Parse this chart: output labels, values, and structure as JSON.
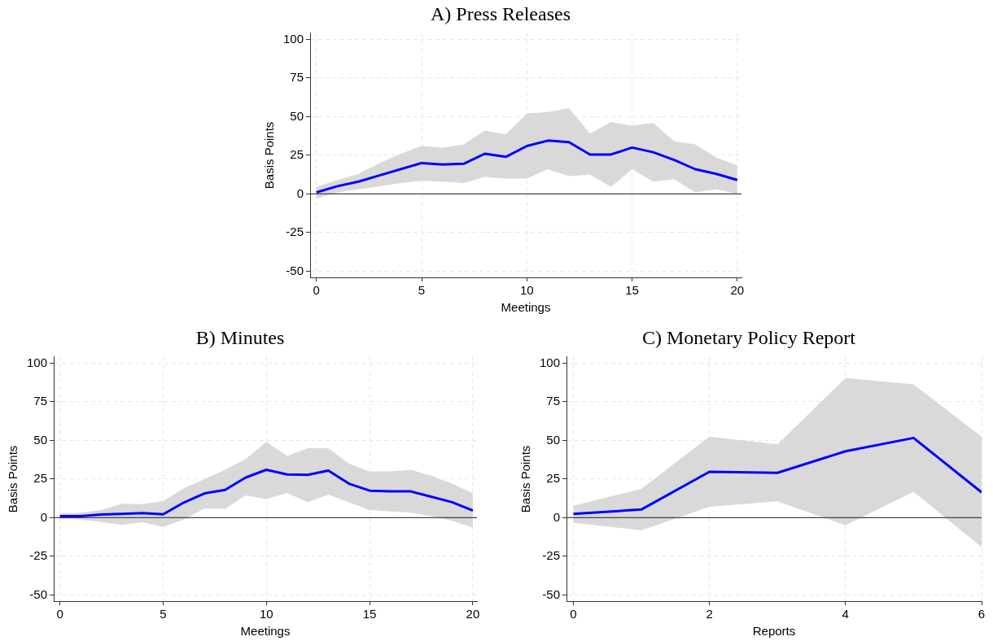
{
  "chart_data": [
    {
      "type": "line",
      "title": "A) Press Releases",
      "xlabel": "Meetings",
      "ylabel": "Basis Points",
      "x": [
        0,
        1,
        2,
        3,
        4,
        5,
        6,
        7,
        8,
        9,
        10,
        11,
        12,
        13,
        14,
        15,
        16,
        17,
        18,
        19,
        20
      ],
      "xlim": [
        -0.3,
        20.2
      ],
      "ylim": [
        -54,
        104
      ],
      "xticks": [
        0,
        5,
        10,
        15,
        20
      ],
      "yticks": [
        -50,
        -25,
        0,
        25,
        50,
        75,
        100
      ],
      "grid": true,
      "ref_lines": [
        {
          "axis": "y",
          "value": 0,
          "color": "#444444"
        }
      ],
      "series": [
        {
          "color": "#0000ff",
          "values": [
            1,
            5,
            8,
            12,
            16,
            20,
            19,
            19.5,
            26,
            24,
            31,
            34.5,
            33.5,
            25.5,
            25.5,
            30,
            27,
            22,
            16,
            13,
            9
          ],
          "lower": [
            -3,
            1,
            3,
            5,
            7,
            8.5,
            8,
            7,
            11,
            10,
            10,
            16,
            11.5,
            12.5,
            4.5,
            16,
            8,
            9.5,
            1,
            3,
            0
          ],
          "upper": [
            4.5,
            9,
            13,
            20,
            26,
            31,
            30,
            32,
            41,
            38.5,
            52,
            53,
            55.5,
            39,
            46.5,
            44,
            46,
            34,
            32,
            23.5,
            18.5
          ]
        }
      ]
    },
    {
      "type": "line",
      "title": "B) Minutes",
      "xlabel": "Meetings",
      "ylabel": "Basis Points",
      "x": [
        0,
        1,
        2,
        3,
        4,
        5,
        6,
        7,
        8,
        9,
        10,
        11,
        12,
        13,
        14,
        15,
        16,
        17,
        18,
        19,
        20
      ],
      "xlim": [
        -0.3,
        20.2
      ],
      "ylim": [
        -54,
        104
      ],
      "xticks": [
        0,
        5,
        10,
        15,
        20
      ],
      "yticks": [
        -50,
        -25,
        0,
        25,
        50,
        75,
        100
      ],
      "grid": true,
      "ref_lines": [
        {
          "axis": "y",
          "value": 0,
          "color": "#444444"
        }
      ],
      "series": [
        {
          "color": "#0000ff",
          "values": [
            1,
            1,
            2,
            2.5,
            3,
            2.2,
            9.8,
            15.7,
            18,
            26,
            31,
            28,
            27.7,
            30.5,
            22,
            17.5,
            17,
            17,
            13.5,
            10,
            4.6
          ],
          "lower": [
            -0.7,
            -1.3,
            -2.8,
            -4.6,
            -3,
            -6,
            -1.3,
            6,
            5.7,
            14.4,
            12,
            16,
            10,
            15,
            10,
            5,
            4,
            3.3,
            1,
            -2,
            -6.5
          ],
          "upper": [
            2.8,
            3.3,
            5,
            9,
            8.7,
            10.7,
            19,
            25,
            31,
            38,
            49,
            40,
            45,
            45,
            35,
            30,
            30,
            31,
            27,
            22,
            15.7
          ]
        }
      ]
    },
    {
      "type": "line",
      "title": "C) Monetary Policy Report",
      "xlabel": "Reports",
      "ylabel": "Basis Points",
      "x": [
        0,
        1,
        2,
        3,
        4,
        5,
        6
      ],
      "xlim": [
        -0.1,
        6
      ],
      "ylim": [
        -54,
        104
      ],
      "xticks": [
        0,
        2,
        4,
        6
      ],
      "yticks": [
        -50,
        -25,
        0,
        25,
        50,
        75,
        100
      ],
      "grid": true,
      "ref_lines": [
        {
          "axis": "y",
          "value": 0,
          "color": "#444444"
        }
      ],
      "series": [
        {
          "color": "#0000ff",
          "values": [
            2.4,
            5.3,
            29.7,
            29,
            43,
            51.6,
            16.4
          ],
          "lower": [
            -3.3,
            -8.2,
            7,
            10.6,
            -4.9,
            16.8,
            -19
          ],
          "upper": [
            7.7,
            18.6,
            52.4,
            47.4,
            90.3,
            86.3,
            52.4
          ]
        }
      ]
    }
  ]
}
